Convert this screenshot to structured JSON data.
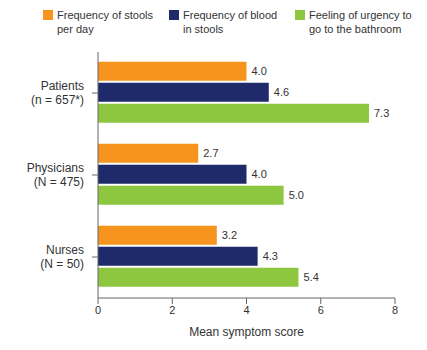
{
  "chart_data": {
    "type": "bar",
    "orientation": "horizontal",
    "data_labels": true,
    "grid": false,
    "legend": "top",
    "categories": [
      "Patients (n = 657*)",
      "Physicians (N = 475)",
      "Nurses (N = 50)"
    ],
    "x_label": "Mean symptom score",
    "xlim": [
      0,
      8
    ],
    "xticks": [
      0,
      2,
      4,
      6,
      8
    ],
    "series": [
      {
        "name": "Frequency of stools per day",
        "color": "#f7941d",
        "values": [
          4.0,
          2.7,
          3.2
        ],
        "value_labels": [
          "4.0",
          "2.7",
          "3.2"
        ]
      },
      {
        "name": "Frequency of blood in stools",
        "color": "#1f2a6b",
        "values": [
          4.6,
          4.0,
          4.3
        ],
        "value_labels": [
          "4.6",
          "4.0",
          "4.3"
        ]
      },
      {
        "name": "Feeling of urgency to go to the bathroom",
        "color": "#8dc63f",
        "values": [
          7.3,
          5.0,
          5.4
        ],
        "value_labels": [
          "7.3",
          "5.0",
          "5.4"
        ]
      }
    ]
  }
}
